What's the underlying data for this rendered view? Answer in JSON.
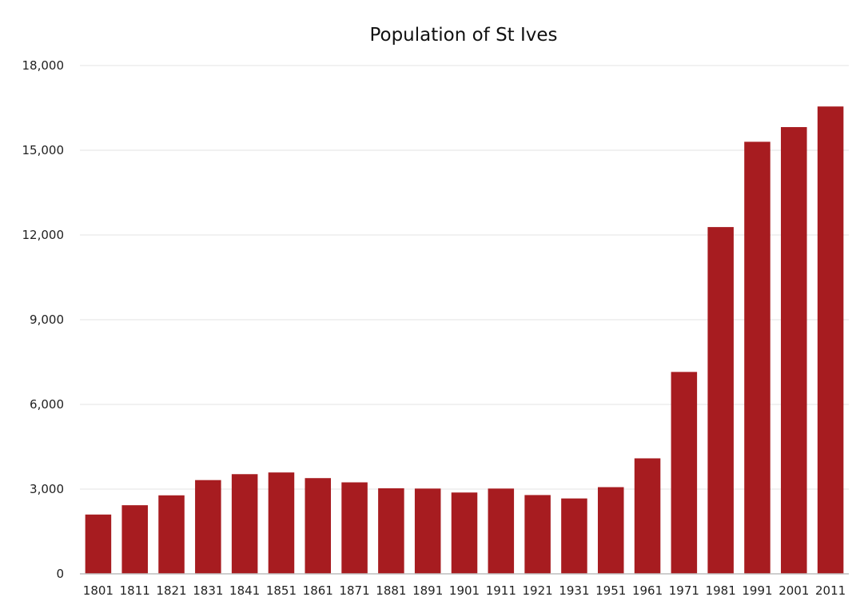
{
  "chart_data": {
    "type": "bar",
    "title": "Population of St Ives",
    "xlabel": "",
    "ylabel": "",
    "categories": [
      "1801",
      "1811",
      "1821",
      "1831",
      "1841",
      "1851",
      "1861",
      "1871",
      "1881",
      "1891",
      "1901",
      "1911",
      "1921",
      "1931",
      "1951",
      "1961",
      "1971",
      "1981",
      "1991",
      "2001",
      "2011"
    ],
    "values": [
      2100,
      2430,
      2780,
      3320,
      3530,
      3590,
      3390,
      3240,
      3030,
      3020,
      2880,
      3020,
      2790,
      2670,
      3070,
      4090,
      7150,
      12280,
      15300,
      15820,
      16550
    ],
    "ylim": [
      0,
      18000
    ],
    "yticks": [
      0,
      3000,
      6000,
      9000,
      12000,
      15000,
      18000
    ],
    "ytick_labels": [
      "0",
      "3,000",
      "6,000",
      "9,000",
      "12,000",
      "15,000",
      "18,000"
    ],
    "grid": true,
    "legend": "none",
    "bar_color": "#a71c20"
  }
}
